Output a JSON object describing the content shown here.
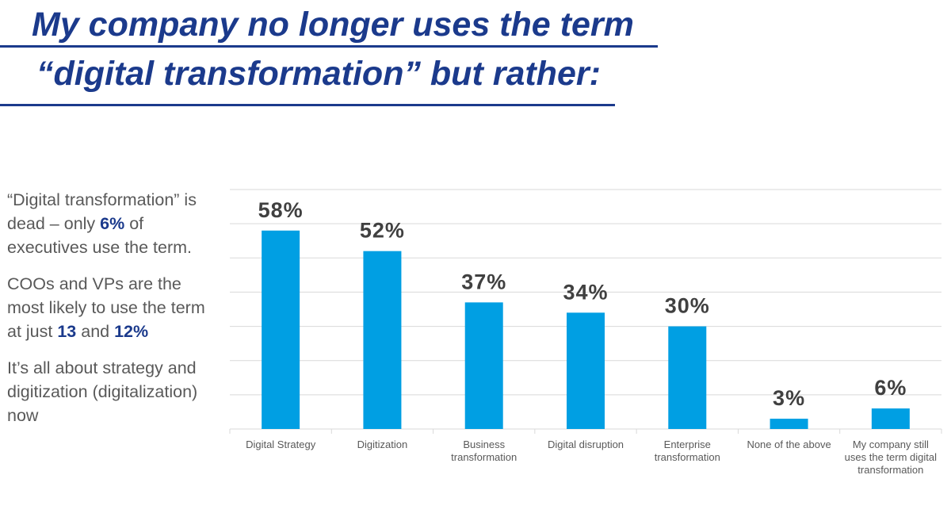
{
  "title": {
    "line1": "My company no longer uses the term",
    "line2": "“digital transformation” but rather:"
  },
  "sidebar": {
    "p1_pre": "“Digital transformation” is dead – only ",
    "p1_bold": "6%",
    "p1_post": " of executives use the term.",
    "p2_pre": "COOs and VPs are the most likely to use the term at just ",
    "p2_bold1": "13",
    "p2_mid": " and ",
    "p2_bold2": "12%",
    "p3": "It’s all about strategy and digitization (digitalization) now"
  },
  "colors": {
    "bar": "#009fe3",
    "title": "#1b3a8c",
    "grid": "#d9d9d9",
    "text": "#595959",
    "label": "#404040"
  },
  "chart_data": {
    "type": "bar",
    "title": "",
    "xlabel": "",
    "ylabel": "",
    "ylim": [
      0,
      70
    ],
    "grid": true,
    "categories": [
      [
        "Digital Strategy"
      ],
      [
        "Digitization"
      ],
      [
        "Business",
        "transformation"
      ],
      [
        "Digital disruption"
      ],
      [
        "Enterprise",
        "transformation"
      ],
      [
        "None of the above"
      ],
      [
        "My company still",
        "uses the term digital",
        "transformation"
      ]
    ],
    "values": [
      58,
      52,
      37,
      34,
      30,
      3,
      6
    ],
    "data_labels": [
      "58%",
      "52%",
      "37%",
      "34%",
      "30%",
      "3%",
      "6%"
    ]
  }
}
